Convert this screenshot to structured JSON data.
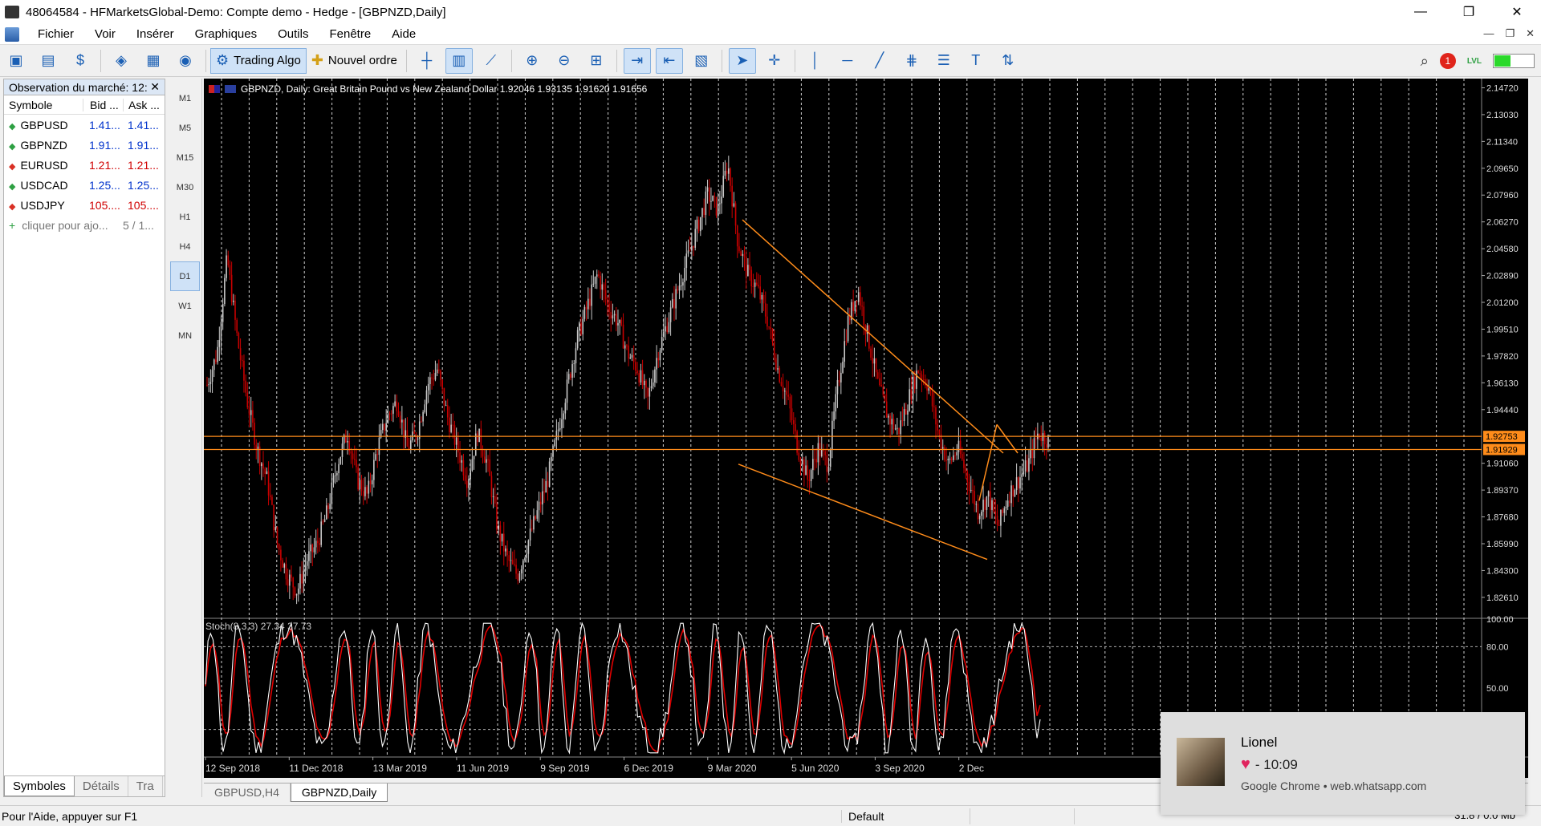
{
  "window": {
    "title": "48064584 - HFMarketsGlobal-Demo: Compte demo - Hedge - [GBPNZD,Daily]",
    "minimize": "—",
    "restore": "❐",
    "close": "✕"
  },
  "menu": [
    "Fichier",
    "Voir",
    "Insérer",
    "Graphiques",
    "Outils",
    "Fenêtre",
    "Aide"
  ],
  "toolbar": {
    "algo_label": "Trading Algo",
    "order_label": "Nouvel ordre",
    "notif_count": "1",
    "lvl_label": "LVL"
  },
  "market_watch": {
    "title": "Observation du marché: 12:",
    "close": "✕",
    "col_symbol": "Symbole",
    "col_bid": "Bid ...",
    "col_ask": "Ask ...",
    "rows": [
      {
        "symbol": "GBPUSD",
        "bid": "1.41...",
        "ask": "1.41...",
        "dir": "up",
        "color": "blue"
      },
      {
        "symbol": "GBPNZD",
        "bid": "1.91...",
        "ask": "1.91...",
        "dir": "up",
        "color": "blue"
      },
      {
        "symbol": "EURUSD",
        "bid": "1.21...",
        "ask": "1.21...",
        "dir": "down",
        "color": "red"
      },
      {
        "symbol": "USDCAD",
        "bid": "1.25...",
        "ask": "1.25...",
        "dir": "up",
        "color": "blue"
      },
      {
        "symbol": "USDJPY",
        "bid": "105....",
        "ask": "105....",
        "dir": "down",
        "color": "red"
      }
    ],
    "add_label": "cliquer pour ajo...",
    "add_count": "5 / 1...",
    "tabs": [
      "Symboles",
      "Détails",
      "Tra"
    ]
  },
  "timeframes": [
    "M1",
    "M5",
    "M15",
    "M30",
    "H1",
    "H4",
    "D1",
    "W1",
    "MN"
  ],
  "active_timeframe": "D1",
  "chart": {
    "header": "GBPNZD, Daily:  Great Britain Pound vs New Zealand Dollar  1.92046 1.93135 1.91620 1.91656",
    "stoch_label": "Stoch(8,3,3) 27.34 37.73"
  },
  "chart_data": {
    "type": "candlestick",
    "symbol": "GBPNZD",
    "timeframe": "Daily",
    "price_axis_ticks": [
      "2.14720",
      "2.13030",
      "2.11340",
      "2.09650",
      "2.07960",
      "2.06270",
      "2.04580",
      "2.02890",
      "2.01200",
      "1.99510",
      "1.97820",
      "1.96130",
      "1.94440",
      "1.92753",
      "1.91929",
      "1.91060",
      "1.89370",
      "1.87680",
      "1.85990",
      "1.84300",
      "1.82610"
    ],
    "price_range": [
      1.8134,
      2.153
    ],
    "horizontal_levels": [
      1.92753,
      1.91929
    ],
    "horizontal_levels_labels": [
      "1.92753",
      "1.91929"
    ],
    "date_ticks": [
      "12 Sep 2018",
      "11 Dec 2018",
      "13 Mar 2019",
      "11 Jun 2019",
      "9 Sep 2019",
      "6 Dec 2019",
      "9 Mar 2020",
      "5 Jun 2020",
      "3 Sep 2020",
      "2 Dec"
    ],
    "price_path": [
      1.96,
      1.98,
      2.04,
      1.99,
      1.95,
      1.92,
      1.9,
      1.86,
      1.84,
      1.83,
      1.85,
      1.86,
      1.88,
      1.91,
      1.93,
      1.9,
      1.89,
      1.92,
      1.94,
      1.95,
      1.92,
      1.93,
      1.96,
      1.97,
      1.94,
      1.92,
      1.9,
      1.93,
      1.91,
      1.87,
      1.85,
      1.84,
      1.86,
      1.88,
      1.9,
      1.93,
      1.96,
      1.99,
      2.01,
      2.03,
      2.01,
      2.0,
      1.98,
      1.97,
      1.95,
      1.98,
      2.0,
      2.02,
      2.04,
      2.06,
      2.08,
      2.07,
      2.1,
      2.05,
      2.03,
      2.02,
      2.0,
      1.97,
      1.95,
      1.92,
      1.9,
      1.92,
      1.91,
      1.96,
      2.0,
      2.02,
      1.99,
      1.96,
      1.94,
      1.93,
      1.95,
      1.97,
      1.96,
      1.93,
      1.91,
      1.92,
      1.9,
      1.88,
      1.89,
      1.87,
      1.89,
      1.9,
      1.91,
      1.93,
      1.925
    ],
    "stochastic": {
      "label": "Stoch(8,3,3) 27.34 37.73",
      "range": [
        0,
        100
      ],
      "ticks": [
        "100.00",
        "80.00",
        "50.00"
      ],
      "levels": [
        20,
        80
      ],
      "main": 27.34,
      "signal": 37.73
    },
    "trendlines": [
      {
        "from": [
          "2020-04",
          2.064
        ],
        "to": [
          "2021-03",
          1.917
        ]
      },
      {
        "from": [
          "2020-04",
          1.91
        ],
        "to": [
          "2021-03",
          1.85
        ]
      },
      {
        "from": [
          "2021-02",
          1.887
        ],
        "to": [
          "2021-03",
          1.935
        ]
      }
    ],
    "colors": {
      "up": "#c8c8c8",
      "down": "#c80000",
      "levels": "#ff8c1a",
      "stoch_main": "#ffffff",
      "stoch_signal": "#e00000"
    }
  },
  "chart_tabs": [
    "GBPUSD,H4",
    "GBPNZD,Daily"
  ],
  "active_chart_tab": "GBPNZD,Daily",
  "status": {
    "help": "Pour l'Aide, appuyer sur F1",
    "profile": "Default",
    "traffic": "31.8 / 0.0 Mb"
  },
  "toast": {
    "name": "Lionel",
    "time": "- 10:09",
    "source": "Google Chrome • web.whatsapp.com"
  }
}
